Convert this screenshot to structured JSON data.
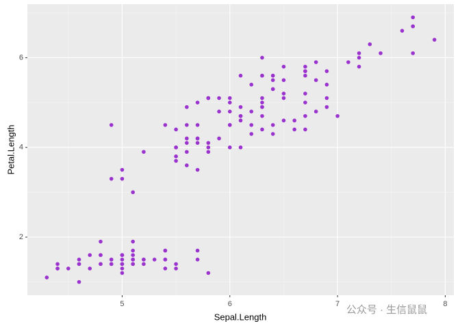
{
  "chart_data": {
    "type": "scatter",
    "x_label": "Sepal.Length",
    "y_label": "Petal.Length",
    "xlim": [
      4.12,
      8.08
    ],
    "ylim": [
      0.705,
      7.195
    ],
    "xticks": [
      5,
      6,
      7,
      8
    ],
    "yticks": [
      2,
      4,
      6
    ],
    "grid": true,
    "watermark": "公众号 · 生信鼠鼠",
    "series": [
      {
        "color": "#9a32cd",
        "x": [
          5.1,
          4.9,
          4.7,
          4.6,
          5.0,
          5.4,
          4.6,
          5.0,
          4.4,
          4.9,
          5.4,
          4.8,
          4.8,
          4.3,
          5.8,
          5.7,
          5.4,
          5.1,
          5.7,
          5.1,
          5.4,
          5.1,
          4.6,
          5.1,
          4.8,
          5.0,
          5.0,
          5.2,
          5.2,
          4.7,
          4.8,
          5.4,
          5.2,
          5.5,
          4.9,
          5.0,
          5.5,
          4.9,
          4.4,
          5.1,
          5.0,
          4.5,
          4.4,
          5.0,
          5.1,
          4.8,
          5.1,
          4.6,
          5.3,
          5.0,
          7.0,
          6.4,
          6.9,
          5.5,
          6.5,
          5.7,
          6.3,
          4.9,
          6.6,
          5.2,
          5.0,
          5.9,
          6.0,
          6.1,
          5.6,
          6.7,
          5.6,
          5.8,
          6.2,
          5.6,
          5.9,
          6.1,
          6.3,
          6.1,
          6.4,
          6.6,
          6.8,
          6.7,
          6.0,
          5.7,
          5.5,
          5.5,
          5.8,
          6.0,
          5.4,
          6.0,
          6.7,
          6.3,
          5.6,
          5.5,
          5.5,
          6.1,
          5.8,
          5.0,
          5.6,
          5.7,
          5.7,
          6.2,
          5.1,
          5.7,
          6.3,
          5.8,
          7.1,
          6.3,
          6.5,
          7.6,
          4.9,
          7.3,
          6.7,
          7.2,
          6.5,
          6.4,
          6.8,
          5.7,
          5.8,
          6.4,
          6.5,
          7.7,
          7.7,
          6.0,
          6.9,
          5.6,
          7.7,
          6.3,
          6.7,
          7.2,
          6.2,
          6.1,
          6.4,
          7.2,
          7.4,
          7.9,
          6.4,
          6.3,
          6.1,
          7.7,
          6.3,
          6.4,
          6.0,
          6.9,
          6.7,
          6.9,
          5.8,
          6.8,
          6.7,
          6.7,
          6.3,
          6.5,
          6.2,
          5.9
        ],
        "values": [
          1.4,
          1.4,
          1.3,
          1.5,
          1.4,
          1.7,
          1.4,
          1.5,
          1.4,
          1.5,
          1.5,
          1.6,
          1.4,
          1.1,
          1.2,
          1.5,
          1.3,
          1.4,
          1.7,
          1.5,
          1.7,
          1.5,
          1.0,
          1.7,
          1.9,
          1.6,
          1.6,
          1.5,
          1.4,
          1.6,
          1.6,
          1.5,
          1.5,
          1.4,
          1.5,
          1.2,
          1.3,
          1.4,
          1.3,
          1.5,
          1.3,
          1.3,
          1.3,
          1.6,
          1.9,
          1.4,
          1.6,
          1.4,
          1.5,
          1.4,
          4.7,
          4.5,
          4.9,
          4.0,
          4.6,
          4.5,
          4.7,
          3.3,
          4.6,
          3.9,
          3.5,
          4.2,
          4.0,
          4.7,
          3.6,
          4.4,
          4.5,
          4.1,
          4.5,
          3.9,
          4.8,
          4.0,
          4.9,
          4.7,
          4.3,
          4.4,
          4.8,
          5.0,
          4.5,
          3.5,
          3.8,
          3.7,
          3.9,
          5.1,
          4.5,
          4.5,
          4.7,
          4.4,
          4.1,
          4.0,
          4.4,
          4.6,
          4.0,
          3.3,
          4.2,
          4.2,
          4.2,
          4.3,
          3.0,
          4.1,
          6.0,
          5.1,
          5.9,
          5.6,
          5.8,
          6.6,
          4.5,
          6.3,
          5.8,
          6.1,
          5.1,
          5.3,
          5.5,
          5.0,
          5.1,
          5.3,
          5.5,
          6.7,
          6.9,
          5.0,
          5.7,
          4.9,
          6.7,
          4.9,
          5.7,
          6.0,
          4.8,
          4.9,
          5.6,
          5.8,
          6.1,
          6.4,
          5.6,
          5.1,
          5.6,
          6.1,
          5.6,
          5.5,
          4.8,
          5.4,
          5.6,
          5.1,
          5.1,
          5.9,
          5.7,
          5.2,
          5.0,
          5.2,
          5.4,
          5.1
        ]
      }
    ]
  }
}
